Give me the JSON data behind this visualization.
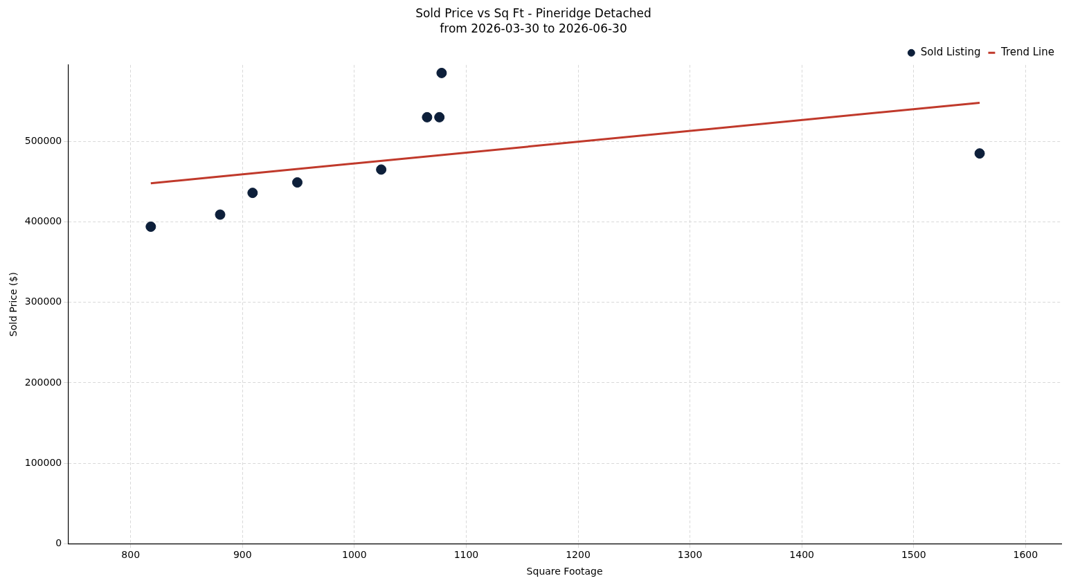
{
  "chart_data": {
    "type": "scatter",
    "title": "Sold Price vs Sq Ft - Pineridge Detached",
    "subtitle": "from 2026-03-30 to 2026-06-30",
    "xlabel": "Square Footage",
    "ylabel": "Sold Price ($)",
    "series": [
      {
        "name": "Sold Listing",
        "type": "scatter",
        "color": "#0d1f3a",
        "marker": "circle",
        "x": [
          818,
          880,
          909,
          949,
          1024,
          1065,
          1076,
          1078,
          1559
        ],
        "values": [
          394000,
          409000,
          436000,
          449000,
          465000,
          530000,
          530000,
          585000,
          485000
        ]
      },
      {
        "name": "Trend Line",
        "type": "line",
        "color": "#c0392b",
        "marker": "none",
        "line_style": "solid",
        "x": [
          818,
          1559
        ],
        "values": [
          448000,
          548000
        ]
      }
    ],
    "xlim": [
      744,
      1632
    ],
    "xticks": [
      800,
      900,
      1000,
      1100,
      1200,
      1300,
      1400,
      1500,
      1600
    ],
    "ylim": [
      0,
      595000
    ],
    "yticks": [
      0,
      100000,
      200000,
      300000,
      400000,
      500000
    ],
    "grid": true,
    "legend": "top right"
  }
}
